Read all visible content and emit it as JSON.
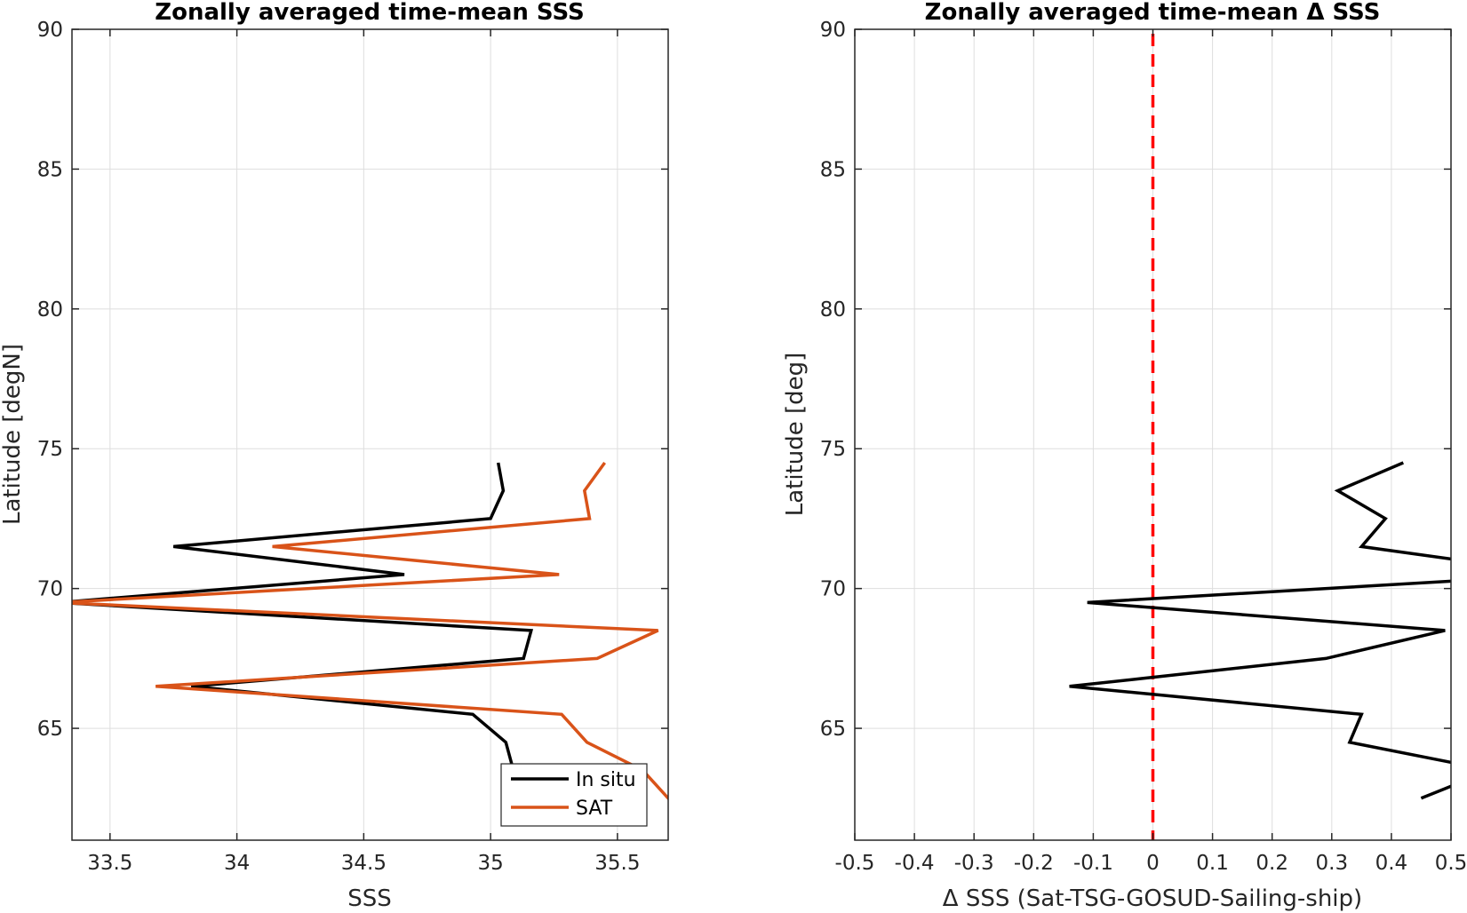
{
  "chart_data": [
    {
      "type": "line",
      "title": "Zonally averaged time-mean SSS",
      "xlabel": "SSS",
      "ylabel": "Latitude [degN]",
      "xlim": [
        33.35,
        35.7
      ],
      "ylim": [
        61,
        90
      ],
      "xticks": [
        33.5,
        34,
        34.5,
        35,
        35.5
      ],
      "xtick_labels": [
        "33.5",
        "34",
        "34.5",
        "35",
        "35.5"
      ],
      "yticks": [
        65,
        70,
        75,
        80,
        85,
        90
      ],
      "ytick_labels": [
        "65",
        "70",
        "75",
        "80",
        "85",
        "90"
      ],
      "grid": true,
      "legend": "bottom-right",
      "series": [
        {
          "name": "In situ",
          "color": "#000000",
          "x": [
            35.09,
            35.06,
            34.93,
            33.82,
            35.13,
            35.16,
            33.3,
            34.66,
            33.75,
            35.0,
            35.05,
            35.03
          ],
          "y": [
            63.5,
            64.5,
            65.5,
            66.5,
            67.5,
            68.5,
            69.5,
            70.5,
            71.5,
            72.5,
            73.5,
            74.5
          ]
        },
        {
          "name": "SAT",
          "color": "#d95319",
          "x": [
            35.8,
            35.6,
            35.38,
            35.28,
            33.68,
            35.42,
            35.66,
            33.3,
            35.27,
            34.14,
            35.39,
            35.37,
            35.45
          ],
          "y": [
            61.5,
            63.5,
            64.5,
            65.5,
            66.5,
            67.5,
            68.5,
            69.5,
            70.5,
            71.5,
            72.5,
            73.5,
            74.5
          ]
        }
      ]
    },
    {
      "type": "line",
      "title": "Zonally averaged time-mean Δ SSS",
      "xlabel": "Δ SSS (Sat-TSG-GOSUD-Sailing-ship)",
      "ylabel": "Latitude [deg]",
      "xlim": [
        -0.5,
        0.5
      ],
      "ylim": [
        61,
        90
      ],
      "xticks": [
        -0.5,
        -0.4,
        -0.3,
        -0.2,
        -0.1,
        0,
        0.1,
        0.2,
        0.3,
        0.4,
        0.5
      ],
      "xtick_labels": [
        "-0.5",
        "-0.4",
        "-0.3",
        "-0.2",
        "-0.1",
        "0",
        "0.1",
        "0.2",
        "0.3",
        "0.4",
        "0.5"
      ],
      "yticks": [
        65,
        70,
        75,
        80,
        85,
        90
      ],
      "ytick_labels": [
        "65",
        "70",
        "75",
        "80",
        "85",
        "90"
      ],
      "grid": true,
      "reference_line": {
        "x": 0,
        "color": "#ff0000",
        "style": "dashed"
      },
      "series": [
        {
          "color": "#000000",
          "x": [
            0.45,
            0.52,
            null,
            0.52,
            0.33,
            0.35,
            -0.14,
            0.29,
            0.49,
            -0.11,
            0.53,
            null,
            0.52,
            0.35,
            0.39,
            0.31,
            0.42
          ],
          "y": [
            62.5,
            63.1,
            null,
            63.7,
            64.5,
            65.5,
            66.5,
            67.5,
            68.5,
            69.5,
            70.3,
            null,
            71.0,
            71.5,
            72.5,
            73.5,
            74.5
          ]
        }
      ]
    }
  ],
  "colors": {
    "in_situ": "#000000",
    "sat": "#d95319",
    "zero_line": "#ff0000",
    "grid": "#dedede",
    "axes": "#262626"
  }
}
